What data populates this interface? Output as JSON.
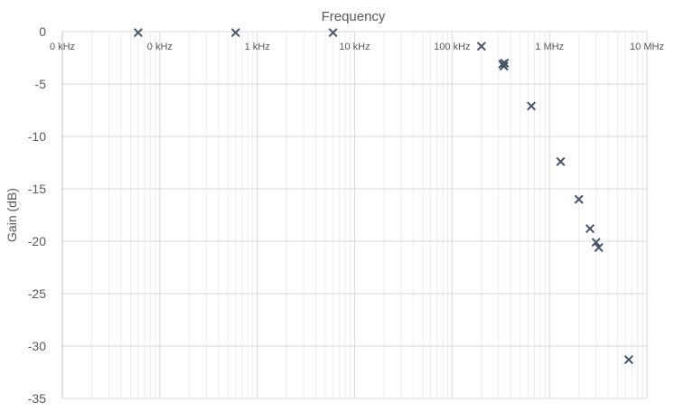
{
  "chart_data": {
    "type": "scatter",
    "title": "Frequency",
    "xlabel": "Frequency",
    "ylabel": "Gain (dB)",
    "x_scale": "log",
    "xlim": [
      10,
      10000000
    ],
    "ylim": [
      -35,
      0
    ],
    "y_ticks": [
      "0",
      "-5",
      "-10",
      "-15",
      "-20",
      "-25",
      "-30",
      "-35"
    ],
    "x_ticks": [
      "0 kHz",
      "0 kHz",
      "1 kHz",
      "10 kHz",
      "100 kHz",
      "1 MHz",
      "10 MHz"
    ],
    "x_tick_values": [
      10,
      100,
      1000,
      10000,
      100000,
      1000000,
      10000000
    ],
    "grid": true,
    "marker_color": "#44546a",
    "series": [
      {
        "x": [
          60,
          600,
          6000,
          200000,
          330000,
          340000,
          345000,
          650000,
          1300000,
          2000000,
          2600000,
          3000000,
          3200000,
          6500000
        ],
        "y": [
          -0.1,
          -0.1,
          -0.1,
          -1.4,
          -3.1,
          -3.3,
          -3.0,
          -7.1,
          -12.4,
          -16.0,
          -18.8,
          -20.1,
          -20.6,
          -31.3
        ]
      }
    ]
  }
}
